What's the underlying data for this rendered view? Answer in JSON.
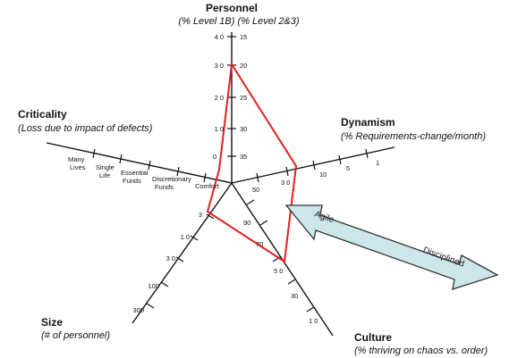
{
  "personnel": {
    "title": "Personnel",
    "subtitle": "(% Level 1B)  (% Level 2&3)",
    "left_ticks": [
      "4 0",
      "3 0",
      "2 0",
      "1 0",
      "0"
    ],
    "right_ticks": [
      "15",
      "20",
      "25",
      "30",
      "35"
    ]
  },
  "criticality": {
    "title": "Criticality",
    "subtitle": "(Loss due to impact of defects)",
    "labels": [
      [
        "Many",
        "Lives"
      ],
      [
        "Single",
        "Life"
      ],
      [
        "Essential",
        "Funds"
      ],
      [
        "Discretionary",
        "Funds"
      ],
      [
        "Comfort"
      ]
    ]
  },
  "dynamism": {
    "title": "Dynamism",
    "subtitle": "(% Requirements-change/month)",
    "ticks": [
      "50",
      "3 0",
      "10",
      "5",
      "1"
    ]
  },
  "culture": {
    "title": "Culture",
    "subtitle": "(% thriving on chaos vs. order)",
    "ticks": [
      "90",
      "70",
      "5 0",
      "30",
      "1 0"
    ]
  },
  "size": {
    "title": "Size",
    "subtitle": "(# of personnel)",
    "ticks": [
      "3",
      "1 0",
      "3 0",
      "100",
      "300"
    ]
  },
  "arrow": {
    "left_label": "Agile",
    "right_label": "Disciplined",
    "fill_color": "#cde6ea",
    "stroke_color": "#333333"
  },
  "profile_color": "#e02020"
}
